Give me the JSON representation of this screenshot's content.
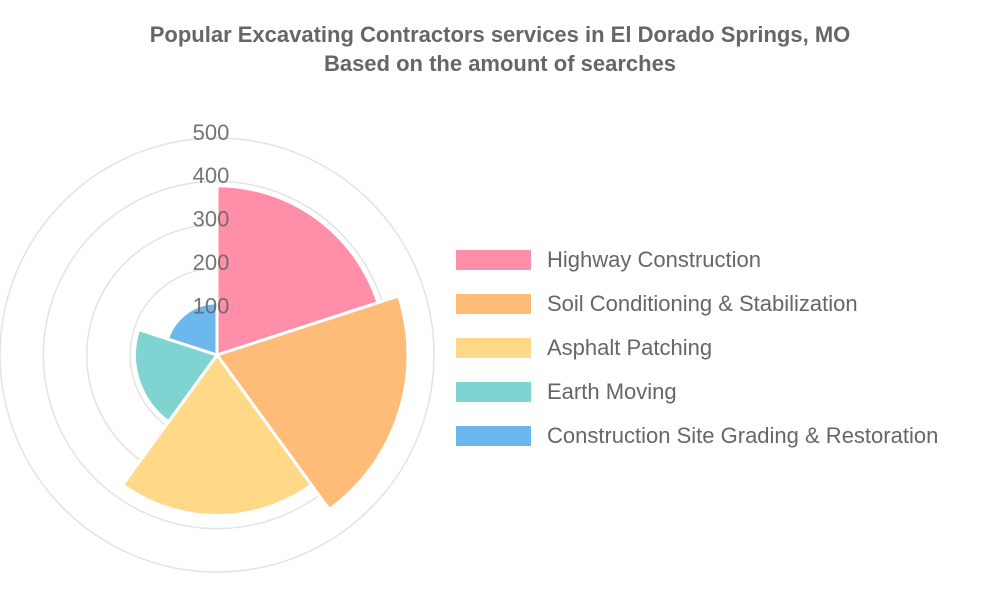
{
  "chart_data": {
    "type": "polar-area",
    "title": "Popular Excavating Contractors services in El Dorado Springs, MO",
    "subtitle": "Based on the amount of searches",
    "categories": [
      "Highway Construction",
      "Soil Conditioning & Stabilization",
      "Asphalt Patching",
      "Earth Moving",
      "Construction Site Grading & Restoration"
    ],
    "values": [
      390,
      440,
      370,
      190,
      120
    ],
    "colors": [
      "#ff8fa8",
      "#ffbb78",
      "#ffd988",
      "#7fd4d1",
      "#6cb8ee"
    ],
    "r_ticks": [
      "100",
      "200",
      "300",
      "400",
      "500"
    ],
    "r_range": [
      0,
      500
    ],
    "grid": true,
    "legend_position": "right"
  }
}
